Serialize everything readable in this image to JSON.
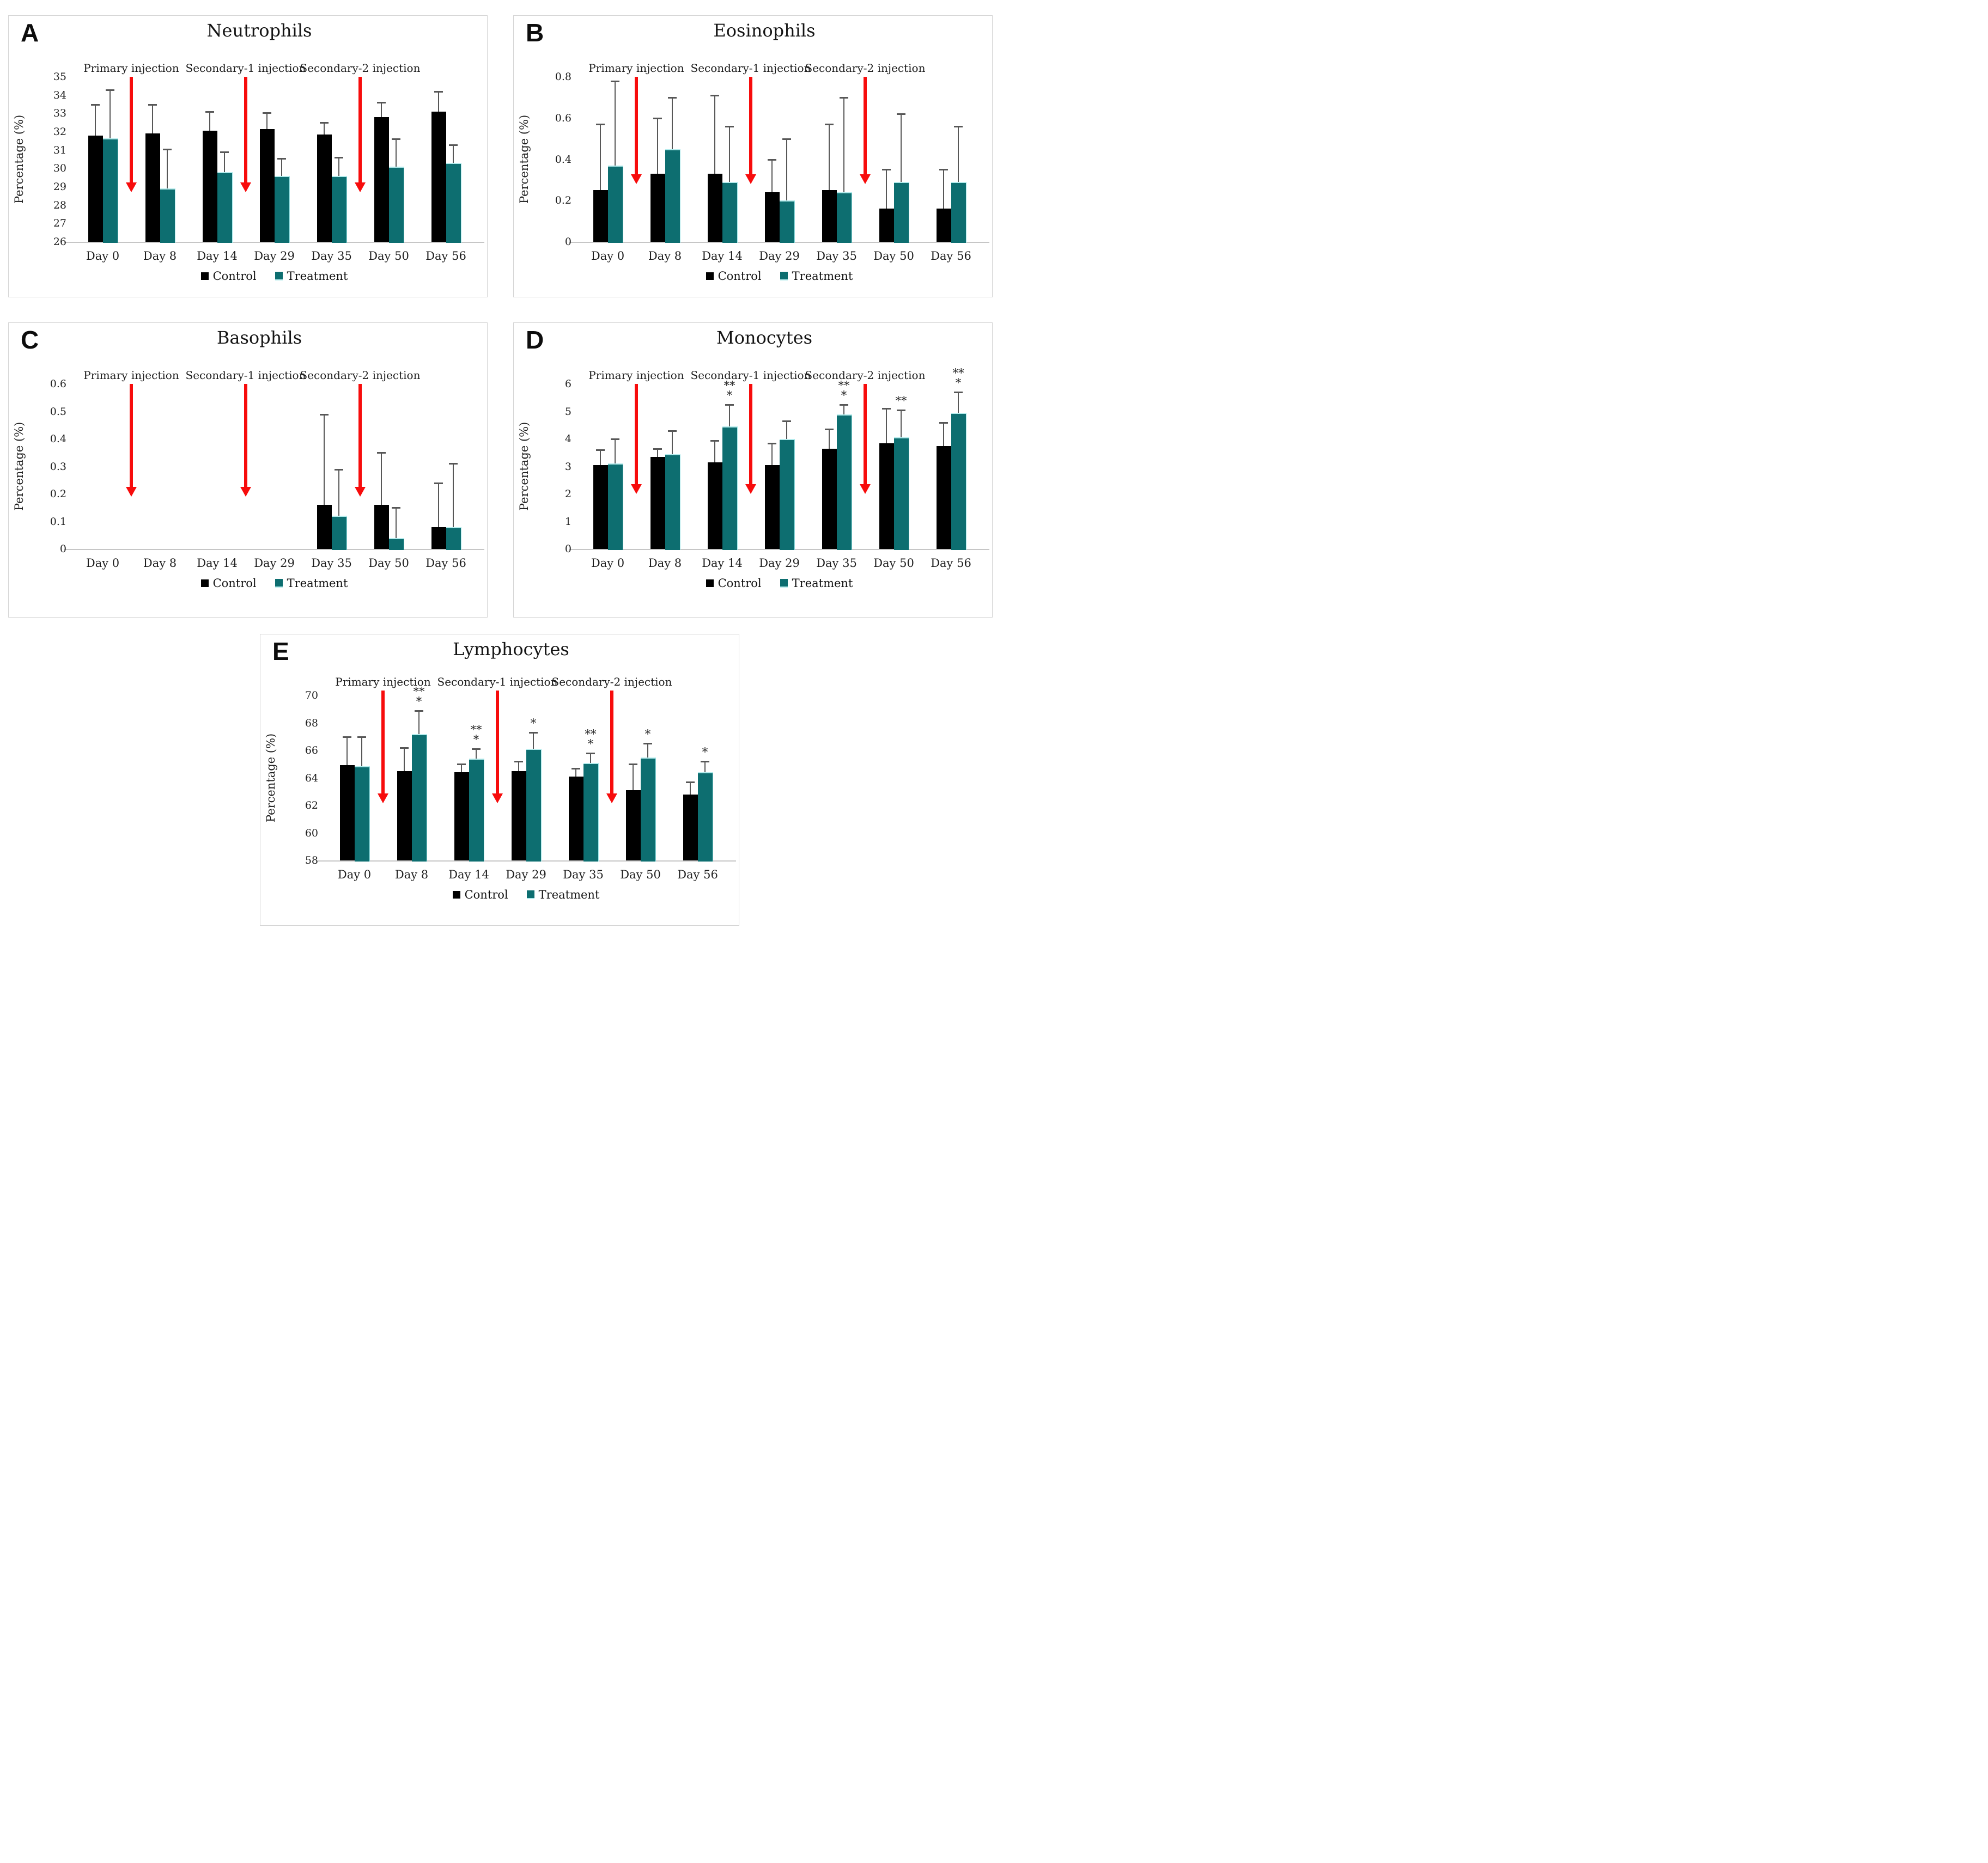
{
  "figure": {
    "legend": {
      "control_label": "Control",
      "treatment_label": "Treatment"
    },
    "injection_labels": [
      "Primary injection",
      "Secondary-1 injection",
      "Secondary-2 injection"
    ],
    "colors": {
      "control": "#000000",
      "treatment": "#0d6e70",
      "treatment_highlight": "#b5eced",
      "arrow_red": "#f70c0c",
      "error_bar": "#575757",
      "panel_border": "#d5d5d5",
      "axis_line": "#c6c6c6",
      "background": "#ffffff"
    }
  },
  "chart_data": [
    {
      "panel": "A",
      "type": "bar",
      "title": "Neutrophils",
      "ylabel": "Percentage (%)",
      "categories": [
        "Day 0",
        "Day 8",
        "Day 14",
        "Day 29",
        "Day 35",
        "Day 50",
        "Day 56"
      ],
      "ylim": [
        26,
        35
      ],
      "ytick_values": [
        26,
        27,
        28,
        29,
        30,
        31,
        32,
        33,
        34,
        35
      ],
      "ytick_labels": [
        "26",
        "27",
        "28",
        "29",
        "30",
        "31",
        "32",
        "33",
        "34",
        "35"
      ],
      "grid": false,
      "legend_position": "bottom",
      "series": [
        {
          "name": "Control",
          "values": [
            31.8,
            31.9,
            32.05,
            32.15,
            31.85,
            32.8,
            33.1
          ],
          "errors": [
            1.7,
            1.6,
            1.05,
            0.9,
            0.65,
            0.8,
            1.1
          ]
        },
        {
          "name": "Treatment",
          "values": [
            31.65,
            28.9,
            29.8,
            29.6,
            29.6,
            30.1,
            30.3
          ],
          "errors": [
            2.65,
            2.15,
            1.1,
            0.95,
            1.0,
            1.5,
            1.0
          ]
        }
      ],
      "sig_annotations": [
        "",
        "",
        "",
        "",
        "",
        "",
        ""
      ],
      "arrows": {
        "labels": [
          "Primary injection",
          "Secondary-1 injection",
          "Secondary-2 injection"
        ],
        "after_category_index": [
          0,
          2,
          4
        ],
        "top_value": 35,
        "bottom_value": 28.7
      }
    },
    {
      "panel": "B",
      "type": "bar",
      "title": "Eosinophils",
      "ylabel": "Percentage (%)",
      "categories": [
        "Day 0",
        "Day 8",
        "Day 14",
        "Day 29",
        "Day 35",
        "Day 50",
        "Day 56"
      ],
      "ylim": [
        0,
        0.8
      ],
      "ytick_values": [
        0,
        0.2,
        0.4,
        0.6,
        0.8
      ],
      "ytick_labels": [
        "0",
        "0.2",
        "0.4",
        "0.6",
        "0.8"
      ],
      "grid": false,
      "legend_position": "bottom",
      "series": [
        {
          "name": "Control",
          "values": [
            0.25,
            0.33,
            0.33,
            0.24,
            0.25,
            0.16,
            0.16
          ],
          "errors": [
            0.32,
            0.27,
            0.38,
            0.16,
            0.32,
            0.19,
            0.19
          ]
        },
        {
          "name": "Treatment",
          "values": [
            0.37,
            0.45,
            0.29,
            0.2,
            0.24,
            0.29,
            0.29
          ],
          "errors": [
            0.41,
            0.25,
            0.27,
            0.3,
            0.46,
            0.33,
            0.27
          ]
        }
      ],
      "sig_annotations": [
        "",
        "",
        "",
        "",
        "",
        "",
        ""
      ],
      "arrows": {
        "labels": [
          "Primary injection",
          "Secondary-1 injection",
          "Secondary-2 injection"
        ],
        "after_category_index": [
          0,
          2,
          4
        ],
        "top_value": 0.8,
        "bottom_value": 0.28
      }
    },
    {
      "panel": "C",
      "type": "bar",
      "title": "Basophils",
      "ylabel": "Percentage (%)",
      "categories": [
        "Day 0",
        "Day 8",
        "Day 14",
        "Day 29",
        "Day 35",
        "Day 50",
        "Day 56"
      ],
      "ylim": [
        0,
        0.6
      ],
      "ytick_values": [
        0,
        0.1,
        0.2,
        0.3,
        0.4,
        0.5,
        0.6
      ],
      "ytick_labels": [
        "0",
        "0.1",
        "0.2",
        "0.3",
        "0.4",
        "0.5",
        "0.6"
      ],
      "grid": false,
      "legend_position": "bottom",
      "series": [
        {
          "name": "Control",
          "values": [
            null,
            null,
            null,
            null,
            0.16,
            0.16,
            0.08
          ],
          "errors": [
            null,
            null,
            null,
            null,
            0.33,
            0.19,
            0.16
          ]
        },
        {
          "name": "Treatment",
          "values": [
            null,
            null,
            null,
            null,
            0.12,
            0.04,
            0.08
          ],
          "errors": [
            null,
            null,
            null,
            null,
            0.17,
            0.11,
            0.23
          ]
        }
      ],
      "sig_annotations": [
        "",
        "",
        "",
        "",
        "",
        "",
        ""
      ],
      "arrows": {
        "labels": [
          "Primary injection",
          "Secondary-1 injection",
          "Secondary-2 injection"
        ],
        "after_category_index": [
          0,
          2,
          4
        ],
        "top_value": 0.6,
        "bottom_value": 0.19
      }
    },
    {
      "panel": "D",
      "type": "bar",
      "title": "Monocytes",
      "ylabel": "Percentage (%)",
      "categories": [
        "Day 0",
        "Day 8",
        "Day 14",
        "Day 29",
        "Day 35",
        "Day 50",
        "Day 56"
      ],
      "ylim": [
        0,
        6
      ],
      "ytick_values": [
        0,
        1,
        2,
        3,
        4,
        5,
        6
      ],
      "ytick_labels": [
        "0",
        "1",
        "2",
        "3",
        "4",
        "5",
        "6"
      ],
      "grid": false,
      "legend_position": "bottom",
      "series": [
        {
          "name": "Control",
          "values": [
            3.05,
            3.35,
            3.15,
            3.05,
            3.65,
            3.85,
            3.75
          ],
          "errors": [
            0.55,
            0.3,
            0.8,
            0.8,
            0.7,
            1.25,
            0.85
          ]
        },
        {
          "name": "Treatment",
          "values": [
            3.1,
            3.45,
            4.45,
            4.0,
            4.9,
            4.05,
            4.95
          ],
          "errors": [
            0.9,
            0.85,
            0.8,
            0.65,
            0.35,
            1.0,
            0.75
          ]
        }
      ],
      "sig_annotations": [
        "",
        "",
        "**|*",
        "",
        "**|*",
        "**",
        "**|*"
      ],
      "arrows": {
        "labels": [
          "Primary injection",
          "Secondary-1 injection",
          "Secondary-2 injection"
        ],
        "after_category_index": [
          0,
          2,
          4
        ],
        "top_value": 6,
        "bottom_value": 2.0
      }
    },
    {
      "panel": "E",
      "type": "bar",
      "title": "Lymphocytes",
      "ylabel": "Percentage (%)",
      "categories": [
        "Day 0",
        "Day 8",
        "Day 14",
        "Day 29",
        "Day 35",
        "Day 50",
        "Day 56"
      ],
      "ylim": [
        58,
        70
      ],
      "ytick_values": [
        58,
        60,
        62,
        64,
        66,
        68,
        70
      ],
      "ytick_labels": [
        "58",
        "60",
        "62",
        "64",
        "66",
        "68",
        "70"
      ],
      "grid": false,
      "legend_position": "bottom",
      "series": [
        {
          "name": "Control",
          "values": [
            64.95,
            64.5,
            64.4,
            64.5,
            64.1,
            63.1,
            62.8
          ],
          "errors": [
            2.05,
            1.7,
            0.6,
            0.7,
            0.6,
            1.9,
            0.9
          ]
        },
        {
          "name": "Treatment",
          "values": [
            64.85,
            67.2,
            65.4,
            66.1,
            65.1,
            65.5,
            64.4
          ],
          "errors": [
            2.15,
            1.7,
            0.7,
            1.2,
            0.7,
            1.0,
            0.8
          ]
        }
      ],
      "sig_annotations": [
        "",
        "**|*",
        "**|*",
        "*",
        "**|*",
        "*",
        "*"
      ],
      "arrows": {
        "labels": [
          "Primary injection",
          "Secondary-1 injection",
          "Secondary-2 injection"
        ],
        "after_category_index": [
          0,
          2,
          4
        ],
        "top_value": 70.35,
        "bottom_value": 62.15
      }
    }
  ]
}
